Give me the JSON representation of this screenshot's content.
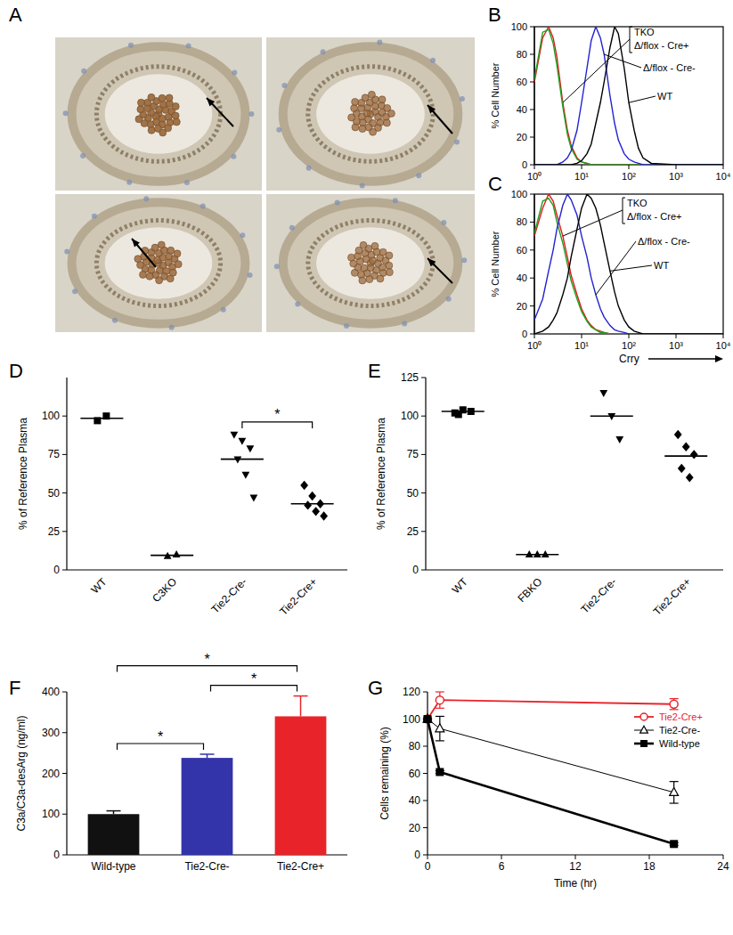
{
  "image_panel": {
    "panel": "A"
  },
  "chart_data": [
    {
      "panel": "B",
      "type": "line",
      "ylabel": "% Cell Number",
      "log": "x",
      "xlim": [
        1,
        10000
      ],
      "ylim": [
        0,
        100
      ],
      "xticks": [
        {
          "value": 1,
          "label": "10⁰"
        },
        {
          "value": 10,
          "label": "10¹"
        },
        {
          "value": 100,
          "label": "10²"
        },
        {
          "value": 1000,
          "label": "10³"
        },
        {
          "value": 10000,
          "label": "10⁴"
        }
      ],
      "yticks": [
        0,
        20,
        40,
        60,
        80,
        100
      ],
      "x": [
        1,
        1.5,
        2,
        2.5,
        3,
        4,
        5,
        6,
        8,
        10,
        13,
        16,
        20,
        25,
        30,
        40,
        50,
        60,
        80,
        100,
        130,
        160,
        200,
        300,
        1000,
        10000
      ],
      "series": [
        {
          "name": "TKO",
          "color": "#e31a1c",
          "values": [
            60,
            92,
            100,
            92,
            78,
            45,
            25,
            14,
            5,
            2,
            1,
            0,
            0,
            0,
            0,
            0,
            0,
            0,
            0,
            0,
            0,
            0,
            0,
            0,
            0,
            0
          ]
        },
        {
          "name": "Δ/flox - Cre+",
          "color": "#1fa01f",
          "values": [
            62,
            96,
            98,
            88,
            72,
            42,
            22,
            12,
            4,
            2,
            1,
            0,
            0,
            0,
            0,
            0,
            0,
            0,
            0,
            0,
            0,
            0,
            0,
            0,
            0,
            0
          ]
        },
        {
          "name": "Δ/flox - Cre-",
          "color": "#2222d0",
          "values": [
            0,
            0,
            0,
            0,
            0,
            2,
            5,
            10,
            25,
            45,
            70,
            90,
            100,
            92,
            80,
            50,
            30,
            18,
            8,
            4,
            2,
            1,
            0,
            0,
            0,
            0
          ]
        },
        {
          "name": "WT",
          "color": "#000000",
          "values": [
            0,
            0,
            0,
            0,
            0,
            0,
            0,
            0,
            1,
            3,
            8,
            15,
            30,
            45,
            60,
            85,
            100,
            95,
            70,
            45,
            25,
            12,
            5,
            1,
            0,
            0
          ]
        }
      ]
    },
    {
      "panel": "C",
      "type": "line",
      "ylabel": "% Cell Number",
      "xlabel": "Crry",
      "log": "x",
      "xlim": [
        1,
        10000
      ],
      "ylim": [
        0,
        100
      ],
      "xticks": [
        {
          "value": 1,
          "label": "10⁰"
        },
        {
          "value": 10,
          "label": "10¹"
        },
        {
          "value": 100,
          "label": "10²"
        },
        {
          "value": 1000,
          "label": "10³"
        },
        {
          "value": 10000,
          "label": "10⁴"
        }
      ],
      "yticks": [
        0,
        20,
        40,
        60,
        80,
        100
      ],
      "x": [
        1,
        1.5,
        2,
        2.5,
        3,
        4,
        5,
        6,
        8,
        10,
        13,
        16,
        20,
        25,
        30,
        40,
        50,
        60,
        80,
        100,
        130,
        160,
        200,
        300,
        1000,
        10000
      ],
      "series": [
        {
          "name": "TKO",
          "color": "#e31a1c",
          "values": [
            70,
            90,
            100,
            95,
            85,
            70,
            55,
            42,
            28,
            18,
            10,
            6,
            3,
            2,
            1,
            0,
            0,
            0,
            0,
            0,
            0,
            0,
            0,
            0,
            0,
            0
          ]
        },
        {
          "name": "Δ/flox - Cre+",
          "color": "#1fa01f",
          "values": [
            72,
            95,
            97,
            92,
            80,
            65,
            50,
            38,
            25,
            16,
            9,
            5,
            3,
            1,
            1,
            0,
            0,
            0,
            0,
            0,
            0,
            0,
            0,
            0,
            0,
            0
          ]
        },
        {
          "name": "Δ/flox - Cre-",
          "color": "#2222d0",
          "values": [
            10,
            25,
            45,
            60,
            75,
            92,
            100,
            96,
            85,
            70,
            55,
            40,
            28,
            18,
            12,
            6,
            3,
            2,
            1,
            0,
            0,
            0,
            0,
            0,
            0,
            0
          ]
        },
        {
          "name": "WT",
          "color": "#000000",
          "values": [
            0,
            2,
            5,
            10,
            15,
            28,
            40,
            55,
            75,
            90,
            100,
            97,
            90,
            78,
            65,
            45,
            30,
            20,
            10,
            5,
            2,
            1,
            0,
            0,
            0,
            0
          ]
        }
      ]
    },
    {
      "panel": "D",
      "type": "scatter",
      "ylabel": "% of Reference Plasma",
      "ylim": [
        0,
        125
      ],
      "yticks": [
        0,
        25,
        50,
        75,
        100
      ],
      "series": [
        {
          "name": "WT",
          "marker": "square",
          "color": "#000000",
          "values": [
            97,
            100
          ],
          "mean": 98.5
        },
        {
          "name": "C3KO",
          "marker": "triangle",
          "color": "#000000",
          "values": [
            9,
            10
          ],
          "mean": 9.5
        },
        {
          "name": "Tie2-Cre-",
          "marker": "triangle-down",
          "color": "#000000",
          "values": [
            88,
            84,
            79,
            72,
            62,
            47
          ],
          "mean": 72
        },
        {
          "name": "Tie2-Cre+",
          "marker": "diamond",
          "color": "#000000",
          "values": [
            55,
            48,
            43,
            42,
            38,
            35
          ],
          "mean": 43
        }
      ],
      "significance": [
        {
          "between": [
            "Tie2-Cre-",
            "Tie2-Cre+"
          ],
          "label": "*"
        }
      ]
    },
    {
      "panel": "E",
      "type": "scatter",
      "ylabel": "% of Reference Plasma",
      "ylim": [
        0,
        125
      ],
      "yticks": [
        0,
        25,
        50,
        75,
        100,
        125
      ],
      "series": [
        {
          "name": "WT",
          "marker": "square",
          "color": "#000000",
          "values": [
            102,
            104,
            103,
            101
          ],
          "mean": 103
        },
        {
          "name": "FBKO",
          "marker": "triangle",
          "color": "#000000",
          "values": [
            10,
            10,
            10
          ],
          "mean": 10
        },
        {
          "name": "Tie2-Cre-",
          "marker": "triangle-down",
          "color": "#000000",
          "values": [
            115,
            100,
            85
          ],
          "mean": 100
        },
        {
          "name": "Tie2-Cre+",
          "marker": "diamond",
          "color": "#000000",
          "values": [
            88,
            80,
            75,
            66,
            60
          ],
          "mean": 74
        }
      ]
    },
    {
      "panel": "F",
      "type": "bar",
      "ylabel": "C3a/C3a-desArg (ng/ml)",
      "ylim": [
        0,
        400
      ],
      "yticks": [
        0,
        100,
        200,
        300,
        400
      ],
      "categories": [
        "Wild-type",
        "Tie2-Cre-",
        "Tie2-Cre+"
      ],
      "values": [
        100,
        238,
        340
      ],
      "errors": [
        8,
        9,
        50
      ],
      "colors": [
        "#111111",
        "#3333aa",
        "#e8242a"
      ],
      "significance": [
        {
          "between": [
            "Wild-type",
            "Tie2-Cre-"
          ],
          "label": "*"
        },
        {
          "between": [
            "Wild-type",
            "Tie2-Cre+"
          ],
          "label": "*"
        },
        {
          "between": [
            "Tie2-Cre-",
            "Tie2-Cre+"
          ],
          "label": "*"
        }
      ]
    },
    {
      "panel": "G",
      "type": "line",
      "ylabel": "Cells remaining (%)",
      "xlabel": "Time (hr)",
      "xlim": [
        0,
        24
      ],
      "ylim": [
        0,
        120
      ],
      "xticks": [
        0,
        6,
        12,
        18,
        24
      ],
      "yticks": [
        0,
        20,
        40,
        60,
        80,
        100,
        120
      ],
      "legend": "upper right",
      "x": [
        0,
        1,
        20
      ],
      "series": [
        {
          "name": "Tie2-Cre+",
          "color": "#e8242a",
          "marker": "open-circle",
          "line_style": "solid",
          "values": [
            100,
            114,
            111
          ],
          "errors": [
            0,
            6,
            4
          ]
        },
        {
          "name": "Tie2-Cre-",
          "color": "#000000",
          "marker": "open-triangle",
          "line_style": "solid",
          "values": [
            100,
            93,
            46
          ],
          "errors": [
            0,
            9,
            8
          ]
        },
        {
          "name": "Wild-type",
          "color": "#000000",
          "marker": "square",
          "line_style": "solid",
          "values": [
            100,
            61,
            8
          ],
          "errors": [
            0,
            1,
            1
          ]
        }
      ]
    }
  ]
}
